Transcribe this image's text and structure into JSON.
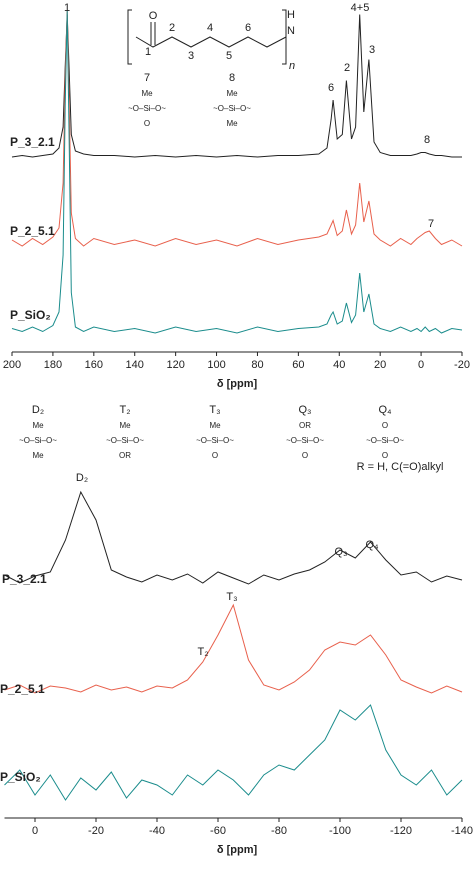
{
  "chart_data": [
    {
      "type": "line",
      "x_label": "δ [ppm]",
      "xlim": [
        200,
        -20
      ],
      "xticks": [
        200,
        180,
        160,
        140,
        120,
        100,
        80,
        60,
        40,
        20,
        0,
        -20
      ],
      "x": [
        200,
        195,
        190,
        185,
        180,
        177,
        175,
        174,
        173,
        172,
        171,
        169,
        165,
        160,
        150,
        140,
        130,
        120,
        110,
        100,
        90,
        80,
        70,
        60,
        50,
        46,
        44,
        43,
        41,
        38.5,
        36.5,
        34,
        32,
        30,
        28,
        25.5,
        23,
        20,
        15,
        10,
        5,
        2,
        0,
        -2,
        -4,
        -7,
        -10,
        -15,
        -20
      ],
      "series": [
        {
          "name": "P_3_2.1",
          "color": "#222222",
          "values": [
            0,
            1,
            0,
            1,
            2,
            6,
            20,
            60,
            95,
            55,
            15,
            4,
            2,
            1,
            1,
            0,
            1,
            0,
            1,
            0,
            1,
            0,
            1,
            1,
            2,
            6,
            25,
            38,
            12,
            15,
            51,
            12,
            20,
            95,
            30,
            65,
            10,
            3,
            1,
            1,
            1,
            2,
            3,
            3,
            2,
            1,
            1,
            0,
            0
          ]
        },
        {
          "name": "P_2_5.1",
          "color": "#e8604c",
          "values": [
            2,
            -2,
            3,
            -1,
            4,
            10,
            40,
            110,
            155,
            90,
            20,
            3,
            -2,
            3,
            -1,
            2,
            -2,
            3,
            -1,
            2,
            -2,
            3,
            -1,
            2,
            4,
            6,
            12,
            15,
            5,
            8,
            22,
            6,
            12,
            40,
            14,
            28,
            6,
            2,
            -2,
            3,
            -1,
            3,
            5,
            7,
            8,
            3,
            -1,
            2,
            -2
          ]
        },
        {
          "name": "P_SiO₂",
          "color": "#1a8c8c",
          "values": [
            1,
            -1,
            2,
            -1,
            3,
            12,
            50,
            150,
            213,
            120,
            25,
            2,
            -1,
            2,
            -1,
            1,
            -2,
            2,
            -1,
            1,
            -2,
            2,
            -1,
            1,
            2,
            4,
            10,
            12,
            4,
            6,
            18,
            5,
            10,
            38,
            12,
            24,
            4,
            1,
            -1,
            2,
            -1,
            1,
            -1,
            2,
            -1,
            1,
            -2,
            1,
            0
          ]
        }
      ],
      "annotations": [
        "1",
        "6",
        "2",
        "4+5",
        "3",
        "8",
        "7"
      ],
      "monomer": {
        "atoms": [
          "O",
          "1",
          "2",
          "3",
          "4",
          "5",
          "6",
          "N",
          "H"
        ],
        "repeat": "n"
      },
      "structures": [
        {
          "label": "7",
          "lines": [
            "Me",
            "~O–Si–O~",
            "O"
          ]
        },
        {
          "label": "8",
          "lines": [
            "Me",
            "~O–Si–O~",
            "Me"
          ]
        }
      ]
    },
    {
      "type": "line",
      "x_label": "δ [ppm]",
      "xlim": [
        10,
        -140
      ],
      "xticks": [
        0,
        -20,
        -40,
        -60,
        -80,
        -100,
        -120,
        -140
      ],
      "x": [
        10,
        5,
        0,
        -5,
        -10,
        -15,
        -20,
        -25,
        -30,
        -35,
        -40,
        -45,
        -50,
        -55,
        -60,
        -65,
        -70,
        -75,
        -80,
        -85,
        -90,
        -95,
        -100,
        -105,
        -110,
        -115,
        -120,
        -125,
        -130,
        -135,
        -140
      ],
      "series": [
        {
          "name": "P_3_2.1",
          "color": "#222222",
          "values": [
            5,
            -3,
            4,
            8,
            40,
            88,
            60,
            10,
            3,
            -2,
            5,
            0,
            6,
            -3,
            8,
            2,
            -4,
            5,
            0,
            6,
            10,
            18,
            30,
            22,
            38,
            20,
            5,
            8,
            -2,
            4,
            0
          ]
        },
        {
          "name": "P_2_5.1",
          "color": "#e8604c",
          "values": [
            0,
            5,
            -3,
            4,
            2,
            -2,
            5,
            0,
            3,
            -2,
            4,
            2,
            10,
            28,
            55,
            85,
            30,
            5,
            0,
            8,
            20,
            40,
            48,
            45,
            55,
            35,
            10,
            3,
            -3,
            4,
            -2
          ]
        },
        {
          "name": "P_SiO₂",
          "color": "#1a8c8c",
          "values": [
            5,
            20,
            -5,
            15,
            -10,
            12,
            0,
            18,
            -8,
            10,
            5,
            -5,
            15,
            5,
            20,
            10,
            -5,
            15,
            25,
            20,
            35,
            50,
            80,
            70,
            85,
            40,
            15,
            5,
            20,
            -5,
            10
          ]
        }
      ],
      "annotations": [
        "D₂",
        "T₂",
        "T₃",
        "Q₃",
        "Q₄",
        "R = H, C(=O)alkyl"
      ],
      "structures": [
        {
          "label": "D₂",
          "lines": [
            "Me",
            "~O–Si–O~",
            "Me"
          ]
        },
        {
          "label": "T₂",
          "lines": [
            "Me",
            "~O–Si–O~",
            "OR"
          ]
        },
        {
          "label": "T₃",
          "lines": [
            "Me",
            "~O–Si–O~",
            "O"
          ]
        },
        {
          "label": "Q₃",
          "lines": [
            "OR",
            "~O–Si–O~",
            "O"
          ]
        },
        {
          "label": "Q₄",
          "lines": [
            "O",
            "~O–Si–O~",
            "O"
          ]
        }
      ]
    }
  ]
}
